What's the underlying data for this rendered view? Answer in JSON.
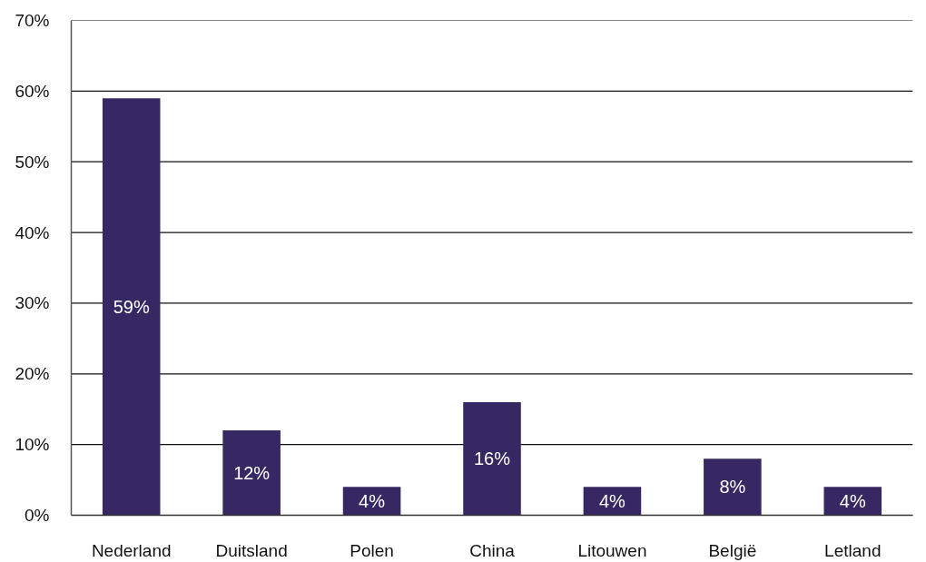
{
  "chart_data": {
    "type": "bar",
    "categories": [
      "Nederland",
      "Duitsland",
      "Polen",
      "China",
      "Litouwen",
      "België",
      "Letland"
    ],
    "values": [
      59,
      12,
      4,
      16,
      4,
      8,
      4
    ],
    "value_labels": [
      "59%",
      "12%",
      "4%",
      "16%",
      "4%",
      "8%",
      "4%"
    ],
    "color": "#372863",
    "ylim": [
      0,
      70
    ],
    "yticks": [
      {
        "value": 0,
        "label": "0%"
      },
      {
        "value": 10,
        "label": "10%"
      },
      {
        "value": 20,
        "label": "20%"
      },
      {
        "value": 30,
        "label": "30%"
      },
      {
        "value": 40,
        "label": "40%"
      },
      {
        "value": 50,
        "label": "50%"
      },
      {
        "value": 60,
        "label": "60%"
      },
      {
        "value": 70,
        "label": "70%"
      }
    ],
    "grid": "y"
  }
}
